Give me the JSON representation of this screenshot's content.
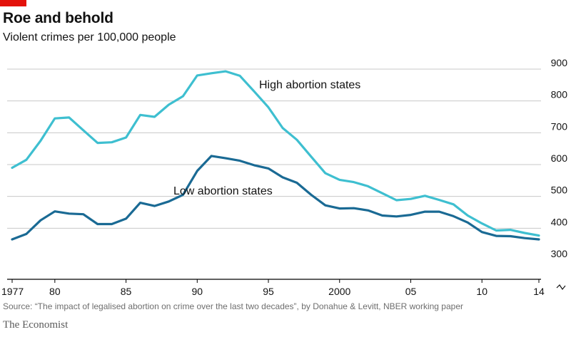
{
  "header": {
    "title": "Roe and behold",
    "subtitle": "Violent crimes per 100,000 people"
  },
  "footer": {
    "source": "Source: “The impact of legalised abortion on crime over the last two decades”, by Donahue & Levitt, NBER working paper",
    "brand": "The Economist"
  },
  "colors": {
    "high": "#3ebfd0",
    "low": "#1a6a94",
    "grid": "#c8c8c8",
    "baseline": "#000000",
    "accent_red": "#e3120b"
  },
  "chart_data": {
    "type": "line",
    "title": "Roe and behold",
    "subtitle": "Violent crimes per 100,000 people",
    "x": [
      1977,
      1978,
      1979,
      1980,
      1981,
      1982,
      1983,
      1984,
      1985,
      1986,
      1987,
      1988,
      1989,
      1990,
      1991,
      1992,
      1993,
      1994,
      1995,
      1996,
      1997,
      1998,
      1999,
      2000,
      2001,
      2002,
      2003,
      2004,
      2005,
      2006,
      2007,
      2008,
      2009,
      2010,
      2011,
      2012,
      2013,
      2014
    ],
    "x_ticks": [
      1977,
      1980,
      1985,
      1990,
      1995,
      2000,
      2005,
      2010,
      2014
    ],
    "x_tick_labels": [
      "1977",
      "80",
      "85",
      "90",
      "95",
      "2000",
      "05",
      "10",
      "14"
    ],
    "ylim": [
      300,
      900
    ],
    "y_ticks": [
      300,
      400,
      500,
      600,
      700,
      800,
      900
    ],
    "y_tick_labels": [
      "300",
      "400",
      "500",
      "600",
      "700",
      "800",
      "900"
    ],
    "y_axis_side": "right",
    "y_axis_break": true,
    "grid": true,
    "series": [
      {
        "name": "High abortion states",
        "color_key": "high",
        "values": [
          590,
          615,
          675,
          745,
          748,
          708,
          668,
          670,
          685,
          756,
          750,
          788,
          815,
          880,
          887,
          893,
          879,
          830,
          780,
          715,
          678,
          625,
          573,
          552,
          545,
          532,
          510,
          488,
          492,
          502,
          489,
          475,
          440,
          415,
          393,
          395,
          385,
          377
        ]
      },
      {
        "name": "Low abortion states",
        "color_key": "low",
        "values": [
          365,
          382,
          425,
          453,
          446,
          444,
          413,
          413,
          430,
          480,
          470,
          484,
          505,
          580,
          627,
          620,
          612,
          598,
          588,
          560,
          543,
          505,
          472,
          462,
          463,
          456,
          440,
          437,
          442,
          452,
          452,
          438,
          418,
          388,
          376,
          375,
          369,
          365
        ]
      }
    ]
  }
}
